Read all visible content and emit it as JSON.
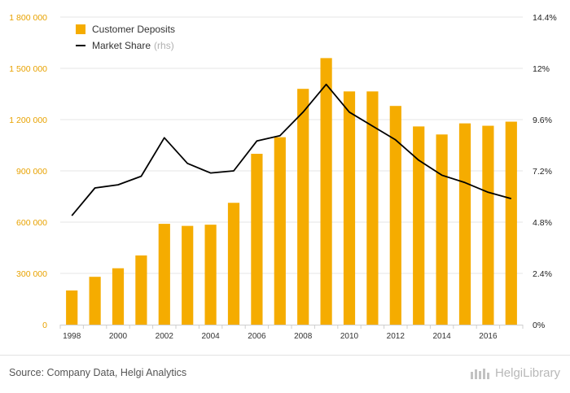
{
  "chart_data": {
    "type": "bar",
    "categories": [
      "1998",
      "1999",
      "2000",
      "2001",
      "2002",
      "2003",
      "2004",
      "2005",
      "2006",
      "2007",
      "2008",
      "2009",
      "2010",
      "2011",
      "2012",
      "2013",
      "2014",
      "2015",
      "2016",
      "2017"
    ],
    "x_tick_labels": [
      "1998",
      "2000",
      "2002",
      "2004",
      "2006",
      "2008",
      "2010",
      "2012",
      "2014",
      "2016"
    ],
    "series": [
      {
        "name": "Customer Deposits",
        "type": "bar",
        "axis": "left",
        "values": [
          200000,
          280000,
          330000,
          405000,
          590000,
          578000,
          585000,
          713000,
          1000000,
          1097000,
          1380000,
          1560000,
          1365000,
          1365000,
          1280000,
          1160000,
          1113000,
          1178000,
          1164000,
          1188000
        ]
      },
      {
        "name": "Market Share",
        "type": "line",
        "axis": "right",
        "values": [
          5.1,
          6.4,
          6.55,
          6.95,
          8.75,
          7.55,
          7.1,
          7.2,
          8.6,
          8.85,
          9.95,
          11.25,
          9.95,
          9.3,
          8.65,
          7.7,
          7.0,
          6.65,
          6.2,
          5.9
        ]
      }
    ],
    "legend_note": "(rhs)",
    "y_left": {
      "lim": [
        0,
        1800000
      ],
      "ticks": [
        0,
        300000,
        600000,
        900000,
        1200000,
        1500000,
        1800000
      ],
      "tick_labels": [
        "0",
        "300 000",
        "600 000",
        "900 000",
        "1 200 000",
        "1 500 000",
        "1 800 000"
      ]
    },
    "y_right": {
      "lim": [
        0,
        14.4
      ],
      "ticks": [
        0,
        2.4,
        4.8,
        7.2,
        9.6,
        12,
        14.4
      ],
      "tick_labels": [
        "0%",
        "2.4%",
        "4.8%",
        "7.2%",
        "9.6%",
        "12%",
        "14.4%"
      ]
    },
    "grid": "horizontal",
    "legend_position": "top-left",
    "colors": {
      "bars": "#f5ac00",
      "line": "#000000",
      "left_axis_text": "#e8a200",
      "right_axis_text": "#222222",
      "grid": "#e6e6e6"
    }
  },
  "footer": {
    "source": "Source: Company Data, Helgi Analytics",
    "brand": "HelgiLibrary"
  }
}
